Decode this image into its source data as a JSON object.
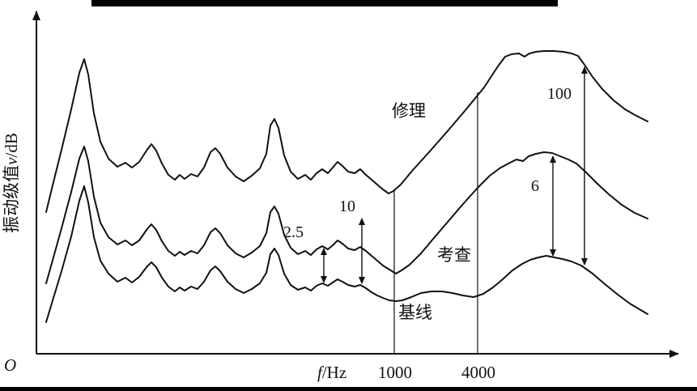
{
  "colors": {
    "ink": "#111111",
    "background": "#ffffff"
  },
  "chart_data": {
    "type": "line",
    "title": "",
    "xlabel": "f/Hz",
    "xlabel_symbol": "f",
    "xlabel_unit": "/Hz",
    "ylabel": "振动级值v/dB",
    "ylabel_prefix": "振动级值",
    "ylabel_symbol": "v",
    "ylabel_unit": "/dB",
    "origin_label": "O",
    "legend_position": "none",
    "grid": false,
    "axes": {
      "x0": 45,
      "y0": 437,
      "x_end": 838,
      "y_top": 14
    },
    "x_ticks": [
      {
        "label": "1000",
        "x": 487
      },
      {
        "label": "4000",
        "x": 590
      }
    ],
    "reference_lines": [
      {
        "x": 487,
        "y_top": 234
      },
      {
        "x": 590,
        "y_top": 114
      }
    ],
    "series": [
      {
        "name": "修理",
        "points": [
          [
            57,
            262
          ],
          [
            66,
            225
          ],
          [
            76,
            185
          ],
          [
            88,
            135
          ],
          [
            98,
            90
          ],
          [
            104,
            73
          ],
          [
            109,
            92
          ],
          [
            116,
            140
          ],
          [
            124,
            175
          ],
          [
            134,
            196
          ],
          [
            145,
            206
          ],
          [
            155,
            201
          ],
          [
            163,
            207
          ],
          [
            172,
            200
          ],
          [
            181,
            186
          ],
          [
            187,
            178
          ],
          [
            193,
            186
          ],
          [
            200,
            202
          ],
          [
            208,
            216
          ],
          [
            216,
            222
          ],
          [
            222,
            216
          ],
          [
            228,
            221
          ],
          [
            236,
            215
          ],
          [
            244,
            218
          ],
          [
            252,
            207
          ],
          [
            260,
            188
          ],
          [
            266,
            183
          ],
          [
            272,
            190
          ],
          [
            281,
            207
          ],
          [
            291,
            218
          ],
          [
            301,
            224
          ],
          [
            311,
            217
          ],
          [
            321,
            208
          ],
          [
            329,
            190
          ],
          [
            334,
            155
          ],
          [
            339,
            147
          ],
          [
            344,
            158
          ],
          [
            351,
            192
          ],
          [
            359,
            212
          ],
          [
            368,
            221
          ],
          [
            377,
            216
          ],
          [
            384,
            222
          ],
          [
            391,
            214
          ],
          [
            398,
            209
          ],
          [
            405,
            214
          ],
          [
            411,
            207
          ],
          [
            417,
            200
          ],
          [
            423,
            205
          ],
          [
            430,
            212
          ],
          [
            438,
            214
          ],
          [
            445,
            209
          ],
          [
            452,
            216
          ],
          [
            459,
            222
          ],
          [
            466,
            228
          ],
          [
            473,
            234
          ],
          [
            480,
            239
          ],
          [
            486,
            236
          ],
          [
            495,
            228
          ],
          [
            510,
            210
          ],
          [
            530,
            188
          ],
          [
            552,
            163
          ],
          [
            575,
            136
          ],
          [
            598,
            108
          ],
          [
            615,
            82
          ],
          [
            624,
            70
          ],
          [
            632,
            67
          ],
          [
            641,
            66
          ],
          [
            648,
            70
          ],
          [
            654,
            66
          ],
          [
            662,
            64
          ],
          [
            672,
            63
          ],
          [
            684,
            63
          ],
          [
            696,
            64
          ],
          [
            706,
            66
          ],
          [
            714,
            69
          ],
          [
            722,
            80
          ],
          [
            732,
            95
          ],
          [
            744,
            110
          ],
          [
            758,
            124
          ],
          [
            772,
            135
          ],
          [
            786,
            143
          ],
          [
            800,
            150
          ]
        ]
      },
      {
        "name": "考查",
        "points": [
          [
            57,
            350
          ],
          [
            66,
            318
          ],
          [
            76,
            282
          ],
          [
            88,
            237
          ],
          [
            98,
            196
          ],
          [
            104,
            181
          ],
          [
            109,
            199
          ],
          [
            116,
            243
          ],
          [
            124,
            275
          ],
          [
            134,
            293
          ],
          [
            145,
            302
          ],
          [
            155,
            297
          ],
          [
            163,
            303
          ],
          [
            172,
            297
          ],
          [
            181,
            284
          ],
          [
            187,
            277
          ],
          [
            193,
            284
          ],
          [
            200,
            298
          ],
          [
            208,
            310
          ],
          [
            216,
            316
          ],
          [
            222,
            311
          ],
          [
            228,
            315
          ],
          [
            236,
            310
          ],
          [
            244,
            313
          ],
          [
            252,
            303
          ],
          [
            260,
            287
          ],
          [
            266,
            282
          ],
          [
            272,
            288
          ],
          [
            281,
            303
          ],
          [
            291,
            313
          ],
          [
            301,
            318
          ],
          [
            311,
            312
          ],
          [
            321,
            304
          ],
          [
            329,
            288
          ],
          [
            334,
            262
          ],
          [
            339,
            255
          ],
          [
            344,
            264
          ],
          [
            351,
            290
          ],
          [
            359,
            306
          ],
          [
            368,
            314
          ],
          [
            377,
            310
          ],
          [
            384,
            315
          ],
          [
            391,
            308
          ],
          [
            398,
            304
          ],
          [
            405,
            308
          ],
          [
            411,
            303
          ],
          [
            417,
            297
          ],
          [
            423,
            301
          ],
          [
            430,
            307
          ],
          [
            438,
            309
          ],
          [
            445,
            305
          ],
          [
            452,
            310
          ],
          [
            459,
            316
          ],
          [
            466,
            322
          ],
          [
            473,
            328
          ],
          [
            481,
            333
          ],
          [
            489,
            338
          ],
          [
            496,
            334
          ],
          [
            506,
            327
          ],
          [
            520,
            313
          ],
          [
            536,
            294
          ],
          [
            554,
            273
          ],
          [
            572,
            252
          ],
          [
            590,
            232
          ],
          [
            605,
            217
          ],
          [
            617,
            208
          ],
          [
            628,
            202
          ],
          [
            638,
            197
          ],
          [
            646,
            199
          ],
          [
            653,
            193
          ],
          [
            662,
            190
          ],
          [
            672,
            188
          ],
          [
            682,
            189
          ],
          [
            692,
            193
          ],
          [
            702,
            197
          ],
          [
            712,
            202
          ],
          [
            724,
            213
          ],
          [
            738,
            227
          ],
          [
            752,
            240
          ],
          [
            768,
            253
          ],
          [
            784,
            263
          ],
          [
            800,
            270
          ]
        ]
      },
      {
        "name": "基线",
        "points": [
          [
            57,
            398
          ],
          [
            66,
            368
          ],
          [
            76,
            335
          ],
          [
            88,
            292
          ],
          [
            98,
            248
          ],
          [
            104,
            230
          ],
          [
            109,
            250
          ],
          [
            116,
            293
          ],
          [
            124,
            322
          ],
          [
            134,
            338
          ],
          [
            145,
            348
          ],
          [
            155,
            343
          ],
          [
            163,
            349
          ],
          [
            172,
            342
          ],
          [
            181,
            330
          ],
          [
            187,
            324
          ],
          [
            193,
            330
          ],
          [
            200,
            343
          ],
          [
            208,
            354
          ],
          [
            216,
            360
          ],
          [
            222,
            355
          ],
          [
            228,
            359
          ],
          [
            236,
            354
          ],
          [
            244,
            357
          ],
          [
            252,
            348
          ],
          [
            260,
            334
          ],
          [
            266,
            329
          ],
          [
            272,
            335
          ],
          [
            281,
            348
          ],
          [
            291,
            357
          ],
          [
            301,
            362
          ],
          [
            311,
            357
          ],
          [
            321,
            350
          ],
          [
            329,
            337
          ],
          [
            334,
            314
          ],
          [
            339,
            307
          ],
          [
            344,
            315
          ],
          [
            351,
            338
          ],
          [
            359,
            352
          ],
          [
            368,
            358
          ],
          [
            377,
            355
          ],
          [
            384,
            359
          ],
          [
            391,
            353
          ],
          [
            398,
            350
          ],
          [
            405,
            353
          ],
          [
            411,
            349
          ],
          [
            417,
            345
          ],
          [
            423,
            348
          ],
          [
            430,
            352
          ],
          [
            438,
            354
          ],
          [
            445,
            352
          ],
          [
            452,
            356
          ],
          [
            459,
            361
          ],
          [
            466,
            365
          ],
          [
            473,
            368
          ],
          [
            481,
            371
          ],
          [
            489,
            372
          ],
          [
            497,
            371
          ],
          [
            508,
            367
          ],
          [
            520,
            362
          ],
          [
            533,
            360
          ],
          [
            546,
            360
          ],
          [
            559,
            362
          ],
          [
            572,
            365
          ],
          [
            585,
            367
          ],
          [
            597,
            363
          ],
          [
            609,
            355
          ],
          [
            621,
            345
          ],
          [
            633,
            334
          ],
          [
            645,
            326
          ],
          [
            655,
            321
          ],
          [
            665,
            318
          ],
          [
            675,
            316
          ],
          [
            685,
            318
          ],
          [
            695,
            320
          ],
          [
            706,
            323
          ],
          [
            718,
            328
          ],
          [
            732,
            338
          ],
          [
            746,
            350
          ],
          [
            762,
            363
          ],
          [
            778,
            375
          ],
          [
            800,
            388
          ]
        ]
      }
    ],
    "annotations": [
      {
        "label": "2.5",
        "arrow_x": 400,
        "y1": 307,
        "y2": 349
      },
      {
        "label": "10",
        "arrow_x": 447,
        "y1": 270,
        "y2": 350
      },
      {
        "label": "100",
        "arrow_x": 722,
        "y1": 83,
        "y2": 327
      },
      {
        "label": "6",
        "arrow_x": 683,
        "y1": 193,
        "y2": 316
      }
    ]
  }
}
